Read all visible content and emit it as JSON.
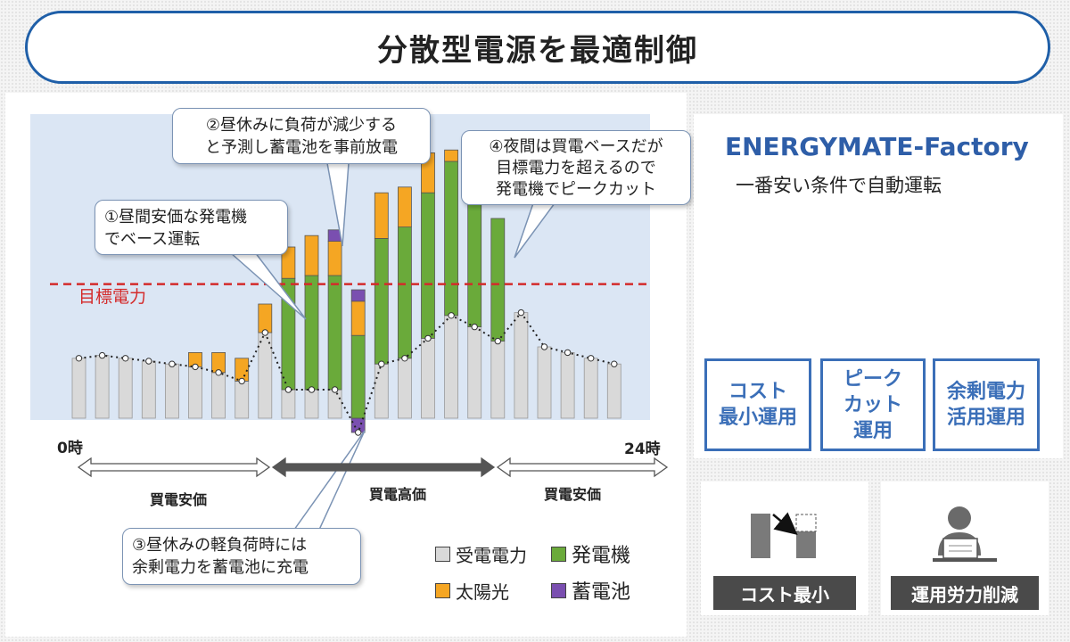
{
  "title": "分散型電源を最適制御",
  "callouts": {
    "c1": [
      "①昼間安価な発電機",
      "でベース運転"
    ],
    "c2": [
      "②昼休みに負荷が減少する",
      "と予測し蓄電池を事前放電"
    ],
    "c3": [
      "③昼休みの軽負荷時には",
      "余剰電力を蓄電池に充電"
    ],
    "c4": [
      "④夜間は買電ベースだが",
      "目標電力を超えるので",
      "発電機でピークカット"
    ]
  },
  "target_label": "目標電力",
  "x_tick_start": "0時",
  "x_tick_end": "24時",
  "periods": [
    "買電安価",
    "買電高価",
    "買電安価"
  ],
  "legend": [
    {
      "label": "受電電力",
      "color": "#d9d9d9"
    },
    {
      "label": "発電機",
      "color": "#6aaa3a"
    },
    {
      "label": "太陽光",
      "color": "#f5a623"
    },
    {
      "label": "蓄電池",
      "color": "#7a4fb0"
    }
  ],
  "product_name": "ENERGYMATE-Factory",
  "product_subtitle": "一番安い条件で自動運転",
  "modes": [
    [
      "コスト",
      "最小運用"
    ],
    [
      "ピーク",
      "カット",
      "運用"
    ],
    [
      "余剰電力",
      "活用運用"
    ]
  ],
  "effects": [
    "コスト最小",
    "運用労力削減"
  ],
  "colors": {
    "grid": "#d9d9d9",
    "generator": "#6aaa3a",
    "solar": "#f5a623",
    "battery": "#7a4fb0",
    "target": "#d42a2a",
    "accent": "#3b6fb8",
    "chart_bg": "#dbe6f4"
  },
  "icons": [
    "desk-computer-icon",
    "peak-shift-icon",
    "operator-pc-icon"
  ],
  "chart_data": {
    "type": "bar",
    "stacked": true,
    "x": [
      0,
      1,
      2,
      3,
      4,
      5,
      6,
      7,
      8,
      9,
      10,
      11,
      12,
      13,
      14,
      15,
      16,
      17,
      18,
      19,
      20,
      21,
      22,
      23
    ],
    "ylim": [
      0,
      100
    ],
    "target": 47,
    "series": [
      {
        "name": "受電電力",
        "values": [
          21,
          22,
          21,
          20,
          19,
          18,
          16,
          13,
          30,
          10,
          10,
          10,
          -5,
          19,
          21,
          28,
          36,
          32,
          27,
          37,
          25,
          23,
          21,
          19
        ]
      },
      {
        "name": "発電機",
        "values": [
          0,
          0,
          0,
          0,
          0,
          0,
          0,
          0,
          0,
          39,
          40,
          40,
          29,
          44,
          46,
          51,
          54,
          51,
          43,
          0,
          0,
          0,
          0,
          0
        ]
      },
      {
        "name": "太陽光",
        "values": [
          0,
          0,
          0,
          0,
          0,
          5,
          7,
          8,
          10,
          11,
          14,
          12,
          12,
          16,
          14,
          14,
          4,
          3,
          0,
          0,
          0,
          0,
          0,
          0
        ]
      },
      {
        "name": "蓄電池",
        "values": [
          0,
          0,
          0,
          0,
          0,
          0,
          0,
          0,
          0,
          0,
          0,
          4,
          4,
          0,
          0,
          0,
          0,
          0,
          0,
          0,
          0,
          0,
          0,
          0
        ]
      }
    ]
  }
}
